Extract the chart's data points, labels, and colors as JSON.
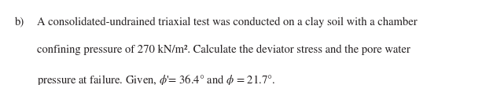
{
  "background_color": "#ffffff",
  "text_color": "#231f20",
  "label": "b)",
  "line1": "A consolidated-undrained triaxial test was conducted on a clay soil with a chamber",
  "line2": "confining pressure of 270 kN/m². Calculate the deviator stress and the pore water",
  "line3": "pressure at failure. Given, ϕ‘= 36.4° and ϕ = 21.7°.",
  "font_size": 10.5,
  "figsize": [
    6.32,
    1.08
  ],
  "dpi": 100
}
